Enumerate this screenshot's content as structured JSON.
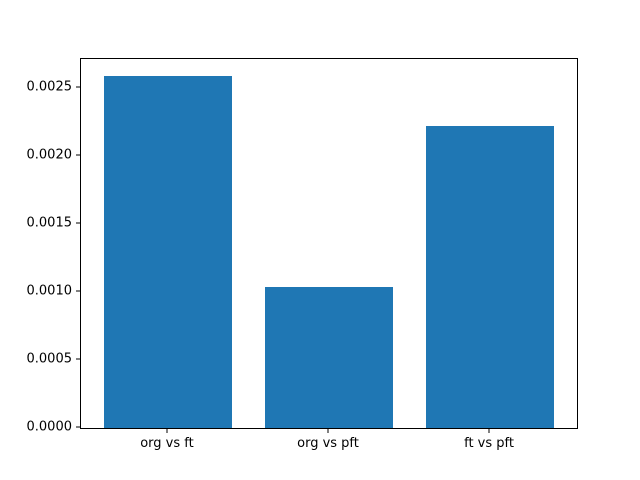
{
  "figure": {
    "background": "#ffffff",
    "axis_color": "#000000",
    "text_color": "#000000",
    "bar_color": "#1f77b4"
  },
  "chart_data": {
    "type": "bar",
    "title": "",
    "xlabel": "",
    "ylabel": "",
    "categories": [
      "org vs ft",
      "org vs pft",
      "ft vs pft"
    ],
    "values": [
      0.00259,
      0.00104,
      0.00222
    ],
    "bar_centers": [
      0,
      1,
      2
    ],
    "bar_width": 0.8,
    "xlim": [
      -0.54,
      2.54
    ],
    "ylim": [
      0,
      0.002713
    ],
    "yticks": [
      0.0,
      0.0005,
      0.001,
      0.0015,
      0.002,
      0.0025
    ],
    "ytick_labels": [
      "0.0000",
      "0.0005",
      "0.0010",
      "0.0015",
      "0.0020",
      "0.0025"
    ],
    "grid": false,
    "legend": null
  }
}
